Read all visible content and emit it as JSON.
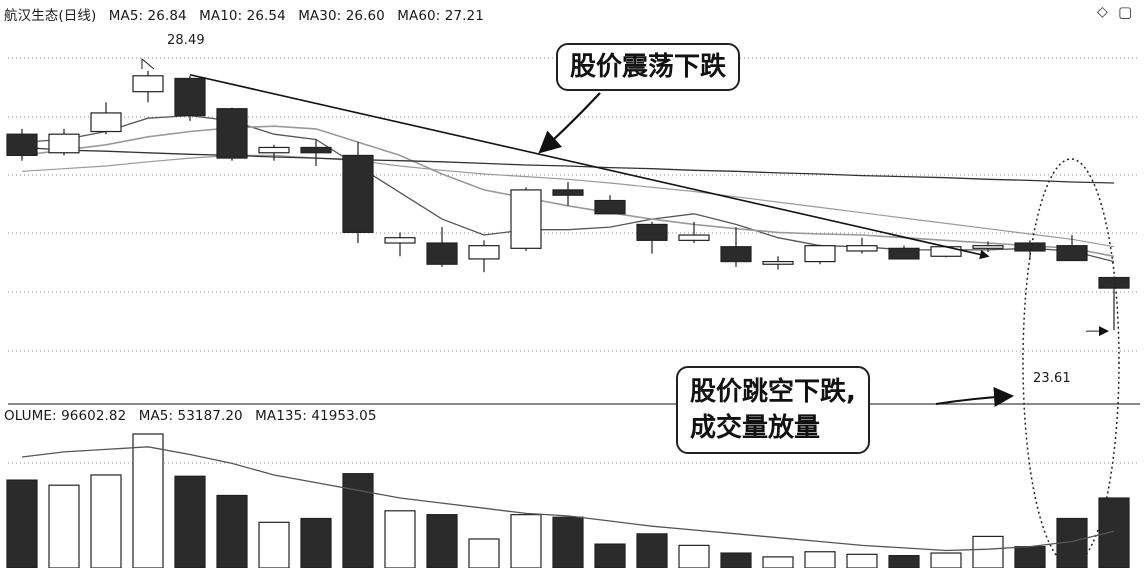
{
  "price_header": {
    "stock_name": "航汉生态(日线)",
    "ma5": "MA5: 26.84",
    "ma10": "MA10: 26.54",
    "ma30": "MA30: 26.60",
    "ma60": "MA60: 27.21"
  },
  "volume_header": {
    "volume": "OLUME: 96602.82",
    "ma5": "MA5: 53187.20",
    "ma135": "MA135: 41953.05"
  },
  "annotations": {
    "high_price": "28.49",
    "low_price": "23.61",
    "callout_oscillation": "股价震荡下跌",
    "callout_gap_line1": "股价跳空下跌,",
    "callout_gap_line2": "成交量放量"
  },
  "colors": {
    "down_candle": "#2b2b2b",
    "up_candle": "#ffffff",
    "ma_short": "#555555",
    "ma_mid": "#9a9a9a",
    "ma_long": "#333333",
    "grid": "#8c8c8c"
  },
  "chart_data": [
    {
      "type": "candlestick",
      "title": "航汉生态(日线)",
      "ylim": [
        22.5,
        29.3
      ],
      "grid": "horizontal dashed",
      "candles": [
        {
          "open": 27.3,
          "close": 26.9,
          "high": 27.4,
          "low": 26.8
        },
        {
          "open": 26.95,
          "close": 27.3,
          "high": 27.4,
          "low": 26.9
        },
        {
          "open": 27.35,
          "close": 27.7,
          "high": 27.9,
          "low": 27.3
        },
        {
          "open": 28.1,
          "close": 28.4,
          "high": 28.49,
          "low": 27.9
        },
        {
          "open": 28.35,
          "close": 27.65,
          "high": 28.4,
          "low": 27.55
        },
        {
          "open": 27.78,
          "close": 26.85,
          "high": 27.8,
          "low": 26.8
        },
        {
          "open": 26.95,
          "close": 27.05,
          "high": 27.1,
          "low": 26.8
        },
        {
          "open": 27.05,
          "close": 26.95,
          "high": 27.2,
          "low": 26.7
        },
        {
          "open": 26.9,
          "close": 25.45,
          "high": 27.15,
          "low": 25.25
        },
        {
          "open": 25.25,
          "close": 25.35,
          "high": 25.45,
          "low": 25.0
        },
        {
          "open": 25.25,
          "close": 24.85,
          "high": 25.55,
          "low": 24.8
        },
        {
          "open": 24.95,
          "close": 25.2,
          "high": 25.3,
          "low": 24.7
        },
        {
          "open": 25.15,
          "close": 26.25,
          "high": 26.3,
          "low": 25.1
        },
        {
          "open": 26.25,
          "close": 26.15,
          "high": 26.4,
          "low": 25.95
        },
        {
          "open": 26.05,
          "close": 25.8,
          "high": 26.15,
          "low": 25.8
        },
        {
          "open": 25.6,
          "close": 25.3,
          "high": 25.65,
          "low": 25.05
        },
        {
          "open": 25.3,
          "close": 25.4,
          "high": 25.65,
          "low": 25.25
        },
        {
          "open": 25.18,
          "close": 24.9,
          "high": 25.55,
          "low": 24.8
        },
        {
          "open": 24.85,
          "close": 24.9,
          "high": 25.0,
          "low": 24.75
        },
        {
          "open": 24.9,
          "close": 25.2,
          "high": 25.22,
          "low": 24.85
        },
        {
          "open": 25.1,
          "close": 25.2,
          "high": 25.35,
          "low": 25.05
        },
        {
          "open": 25.15,
          "close": 24.95,
          "high": 25.2,
          "low": 24.95
        },
        {
          "open": 25.0,
          "close": 25.18,
          "high": 25.2,
          "low": 24.98
        },
        {
          "open": 25.15,
          "close": 25.2,
          "high": 25.28,
          "low": 25.08
        },
        {
          "open": 25.25,
          "close": 25.1,
          "high": 25.3,
          "low": 24.95
        },
        {
          "open": 25.2,
          "close": 24.92,
          "high": 25.4,
          "low": 24.92
        },
        {
          "open": 24.6,
          "close": 24.4,
          "high": 24.62,
          "low": 23.61
        }
      ],
      "series": [
        {
          "name": "MA5",
          "values": [
            27.15,
            27.2,
            27.35,
            27.6,
            27.65,
            27.55,
            27.3,
            27.2,
            26.7,
            26.2,
            25.7,
            25.4,
            25.5,
            25.5,
            25.55,
            25.7,
            25.8,
            25.6,
            25.35,
            25.2,
            25.18,
            25.12,
            25.12,
            25.12,
            25.15,
            25.1,
            24.9
          ]
        },
        {
          "name": "MA10",
          "values": [
            26.9,
            27.0,
            27.1,
            27.25,
            27.35,
            27.42,
            27.45,
            27.4,
            27.15,
            26.9,
            26.55,
            26.25,
            26.1,
            25.95,
            25.82,
            25.7,
            25.6,
            25.52,
            25.45,
            25.42,
            25.4,
            25.35,
            25.3,
            25.25,
            25.2,
            25.15,
            25.0
          ]
        },
        {
          "name": "MA30",
          "values": [
            26.6,
            26.65,
            26.7,
            26.78,
            26.85,
            26.9,
            26.9,
            26.85,
            26.8,
            26.7,
            26.62,
            26.55,
            26.5,
            26.45,
            26.38,
            26.3,
            26.22,
            26.12,
            26.02,
            25.92,
            25.82,
            25.72,
            25.62,
            25.52,
            25.42,
            25.32,
            25.18
          ]
        },
        {
          "name": "MA60",
          "values": [
            27.05,
            27.0,
            26.98,
            26.95,
            26.92,
            26.9,
            26.87,
            26.85,
            26.82,
            26.8,
            26.78,
            26.75,
            26.72,
            26.7,
            26.67,
            26.65,
            26.62,
            26.6,
            26.57,
            26.55,
            26.52,
            26.5,
            26.48,
            26.45,
            26.43,
            26.4,
            26.38
          ]
        }
      ],
      "trendline": {
        "from": {
          "candle": 4,
          "value": 28.42
        },
        "to": {
          "candle": 23,
          "value": 25.0
        }
      }
    },
    {
      "type": "bar",
      "title": "VOLUME",
      "ylim": [
        0,
        100000
      ],
      "values": [
        64000,
        60000,
        68000,
        100000,
        67000,
        52000,
        31000,
        34000,
        69000,
        40000,
        37000,
        18000,
        37000,
        35000,
        14000,
        22000,
        13000,
        7000,
        4000,
        8000,
        6000,
        5000,
        7000,
        20000,
        12000,
        34000,
        50000
      ],
      "series": [
        {
          "name": "MA5",
          "values": [
            82000,
            86000,
            88000,
            90000,
            84000,
            77000,
            68000,
            62000,
            56000,
            50000,
            46000,
            42000,
            38000,
            36000,
            32000,
            28000,
            25000,
            22000,
            19000,
            16000,
            13000,
            11000,
            9000,
            10000,
            12000,
            16000,
            24000
          ]
        }
      ]
    }
  ]
}
